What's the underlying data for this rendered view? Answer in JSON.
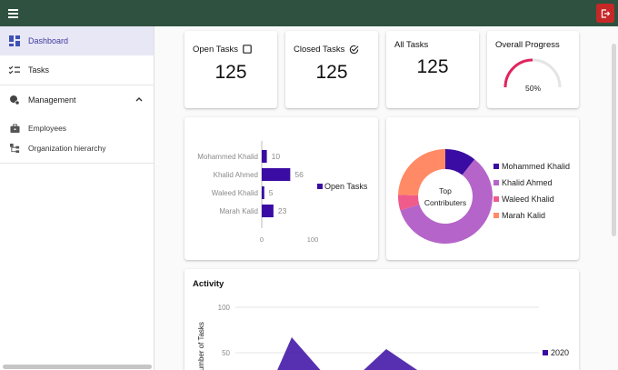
{
  "topbar": {
    "menu_icon": "menu-icon",
    "logout_icon": "logout-icon",
    "logout_color": "#c62828",
    "bar_color": "#2f5140"
  },
  "sidebar": {
    "items": [
      {
        "label": "Dashboard",
        "icon": "dashboard-icon",
        "active": true
      },
      {
        "label": "Tasks",
        "icon": "checklist-icon"
      },
      {
        "label": "Management",
        "icon": "management-icon",
        "expanded": true
      }
    ],
    "sub_items": [
      {
        "label": "Employees",
        "icon": "briefcase-icon"
      },
      {
        "label": "Organization hierarchy",
        "icon": "hierarchy-icon"
      }
    ]
  },
  "stats": {
    "open": {
      "title": "Open Tasks",
      "value": "125",
      "icon": "checkbox-icon"
    },
    "closed": {
      "title": "Closed Tasks",
      "value": "125",
      "icon": "check-circle-icon"
    },
    "all": {
      "title": "All Tasks",
      "value": "125"
    },
    "progress": {
      "title": "Overall Progress",
      "label": "50%",
      "fraction": 0.5,
      "color": "#e0245e"
    }
  },
  "chart_data": [
    {
      "type": "bar",
      "orientation": "horizontal",
      "categories": [
        "Mohammed Khalid",
        "Khalid Ahmed",
        "Waleed Khalid",
        "Marah Kalid"
      ],
      "series": [
        {
          "name": "Open Tasks",
          "values": [
            10,
            56,
            5,
            23
          ],
          "color": "#3a0ca3"
        }
      ],
      "data_labels": [
        "10",
        "56",
        "5",
        "23"
      ],
      "xlim": [
        0,
        100
      ],
      "x_ticks": [
        "0",
        "100"
      ],
      "legend": "right"
    },
    {
      "type": "pie",
      "donut": true,
      "center_label": "Top Contributers",
      "labels": [
        "Mohammed Khalid",
        "Khalid Ahmed",
        "Waleed Khalid",
        "Marah Kalid"
      ],
      "values": [
        10,
        56,
        5,
        23
      ],
      "colors": [
        "#3a0ca3",
        "#b565c9",
        "#ef5b8a",
        "#ff8a65"
      ],
      "legend": "right"
    },
    {
      "type": "area",
      "title": "Activity",
      "ylabel": "Number of Tasks",
      "ylim": [
        0,
        100
      ],
      "y_ticks": [
        "100",
        "50"
      ],
      "series": [
        {
          "name": "2020",
          "color": "#3a0ca3"
        }
      ],
      "legend": "right"
    }
  ]
}
